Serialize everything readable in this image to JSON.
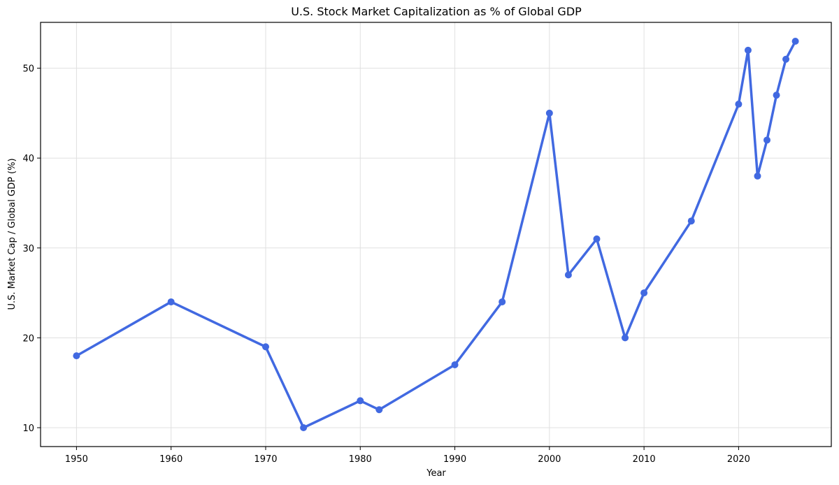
{
  "chart_data": {
    "type": "line",
    "title": "U.S. Stock Market Capitalization as % of Global GDP",
    "xlabel": "Year",
    "ylabel": "U.S. Market Cap / Global GDP (%)",
    "xlim": [
      1946.2,
      2029.8
    ],
    "ylim": [
      7.9,
      55.1
    ],
    "xticks": [
      1950,
      1960,
      1970,
      1980,
      1990,
      2000,
      2010,
      2020
    ],
    "yticks": [
      10,
      20,
      30,
      40,
      50
    ],
    "grid": true,
    "legend": "none",
    "series": [
      {
        "color": "#4169e1",
        "x": [
          1950,
          1960,
          1970,
          1974,
          1980,
          1982,
          1990,
          1995,
          2000,
          2002,
          2005,
          2008,
          2010,
          2015,
          2020,
          2021,
          2022,
          2023,
          2024,
          2025,
          2026
        ],
        "y": [
          18,
          24,
          19,
          10,
          13,
          12,
          17,
          24,
          45,
          27,
          31,
          20,
          25,
          33,
          46,
          52,
          38,
          42,
          47,
          51,
          53
        ]
      }
    ]
  }
}
